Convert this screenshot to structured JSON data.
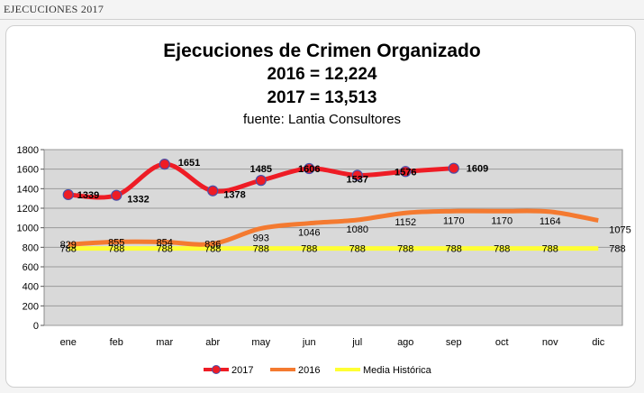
{
  "page": {
    "header": "EJECUCIONES 2017"
  },
  "chart_data": {
    "type": "line",
    "title": "Ejecuciones de Crimen Organizado",
    "subtitle_lines": [
      "2016 = 12,224",
      "2017 = 13,513"
    ],
    "source": "fuente: Lantia Consultores",
    "categories": [
      "ene",
      "feb",
      "mar",
      "abr",
      "may",
      "jun",
      "jul",
      "ago",
      "sep",
      "oct",
      "nov",
      "dic"
    ],
    "ylim": [
      0,
      1800
    ],
    "yticks": [
      0,
      200,
      400,
      600,
      800,
      1000,
      1200,
      1400,
      1600,
      1800
    ],
    "grid": true,
    "legend_position": "bottom",
    "series": [
      {
        "name": "2017",
        "color": "#ee1c25",
        "values": [
          1339,
          1332,
          1651,
          1378,
          1485,
          1606,
          1537,
          1576,
          1609,
          null,
          null,
          null
        ]
      },
      {
        "name": "2016",
        "color": "#f47a30",
        "values": [
          829,
          855,
          854,
          836,
          993,
          1046,
          1080,
          1152,
          1170,
          1170,
          1164,
          1075
        ]
      },
      {
        "name": "Media Histórica",
        "color": "#ffff33",
        "values": [
          788,
          788,
          788,
          788,
          788,
          788,
          788,
          788,
          788,
          788,
          788,
          788
        ]
      }
    ]
  }
}
